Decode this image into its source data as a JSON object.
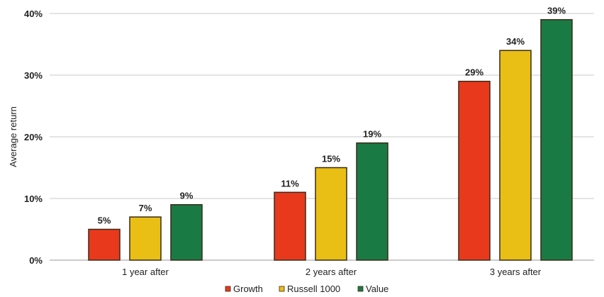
{
  "chart_data": {
    "type": "bar",
    "title": "",
    "xlabel": "",
    "ylabel": "Average return",
    "ylim": [
      0,
      40
    ],
    "yticks": [
      0,
      10,
      20,
      30,
      40
    ],
    "ytick_labels": [
      "0%",
      "10%",
      "20%",
      "30%",
      "40%"
    ],
    "grid": true,
    "legend_position": "bottom-center",
    "categories": [
      "1 year after",
      "2 years after",
      "3 years after"
    ],
    "series": [
      {
        "name": "Growth",
        "color": "#e8391c",
        "values": [
          5,
          11,
          29
        ],
        "labels": [
          "5%",
          "11%",
          "29%"
        ]
      },
      {
        "name": "Russell 1000",
        "color": "#e9bf15",
        "values": [
          7,
          15,
          34
        ],
        "labels": [
          "7%",
          "15%",
          "34%"
        ]
      },
      {
        "name": "Value",
        "color": "#1a7a44",
        "values": [
          9,
          19,
          39
        ],
        "labels": [
          "9%",
          "19%",
          "39%"
        ]
      }
    ]
  }
}
